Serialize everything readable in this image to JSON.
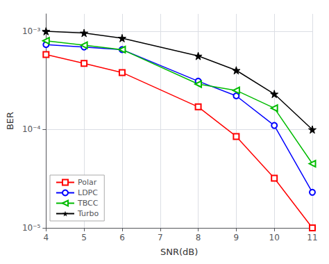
{
  "chart_data": {
    "type": "line",
    "x_label": "SNR(dB)",
    "y_label": "BER",
    "x": [
      4,
      5,
      6,
      8,
      9,
      10,
      11
    ],
    "series": [
      {
        "name": "Polar",
        "color": "#FF0000",
        "marker": "square",
        "values": [
          0.00058,
          0.00047,
          0.00038,
          0.00017,
          8.5e-05,
          3.2e-05,
          1e-05
        ]
      },
      {
        "name": "LDPC",
        "color": "#0000FF",
        "marker": "circle",
        "values": [
          0.00073,
          0.00069,
          0.00065,
          0.00031,
          0.00022,
          0.00011,
          2.3e-05
        ]
      },
      {
        "name": "TBCC",
        "color": "#00BB00",
        "marker": "triangle-left",
        "values": [
          0.0008,
          0.00072,
          0.00065,
          0.00029,
          0.00025,
          0.000165,
          4.5e-05
        ]
      },
      {
        "name": "Turbo",
        "color": "#000000",
        "marker": "star",
        "values": [
          0.001,
          0.00096,
          0.00085,
          0.00056,
          0.0004,
          0.00023,
          0.0001
        ]
      }
    ],
    "log": "y",
    "xlim": [
      4,
      11
    ],
    "xticks": [
      4,
      5,
      6,
      7,
      8,
      9,
      10,
      11
    ],
    "ylim": [
      1e-05,
      0.0015
    ],
    "yticks": [
      {
        "value": 1e-05,
        "label": "10⁻⁵"
      },
      {
        "value": 0.0001,
        "label": "10⁻⁴"
      },
      {
        "value": 0.001,
        "label": "10⁻³"
      }
    ],
    "grid": true,
    "legend": "lower left"
  }
}
